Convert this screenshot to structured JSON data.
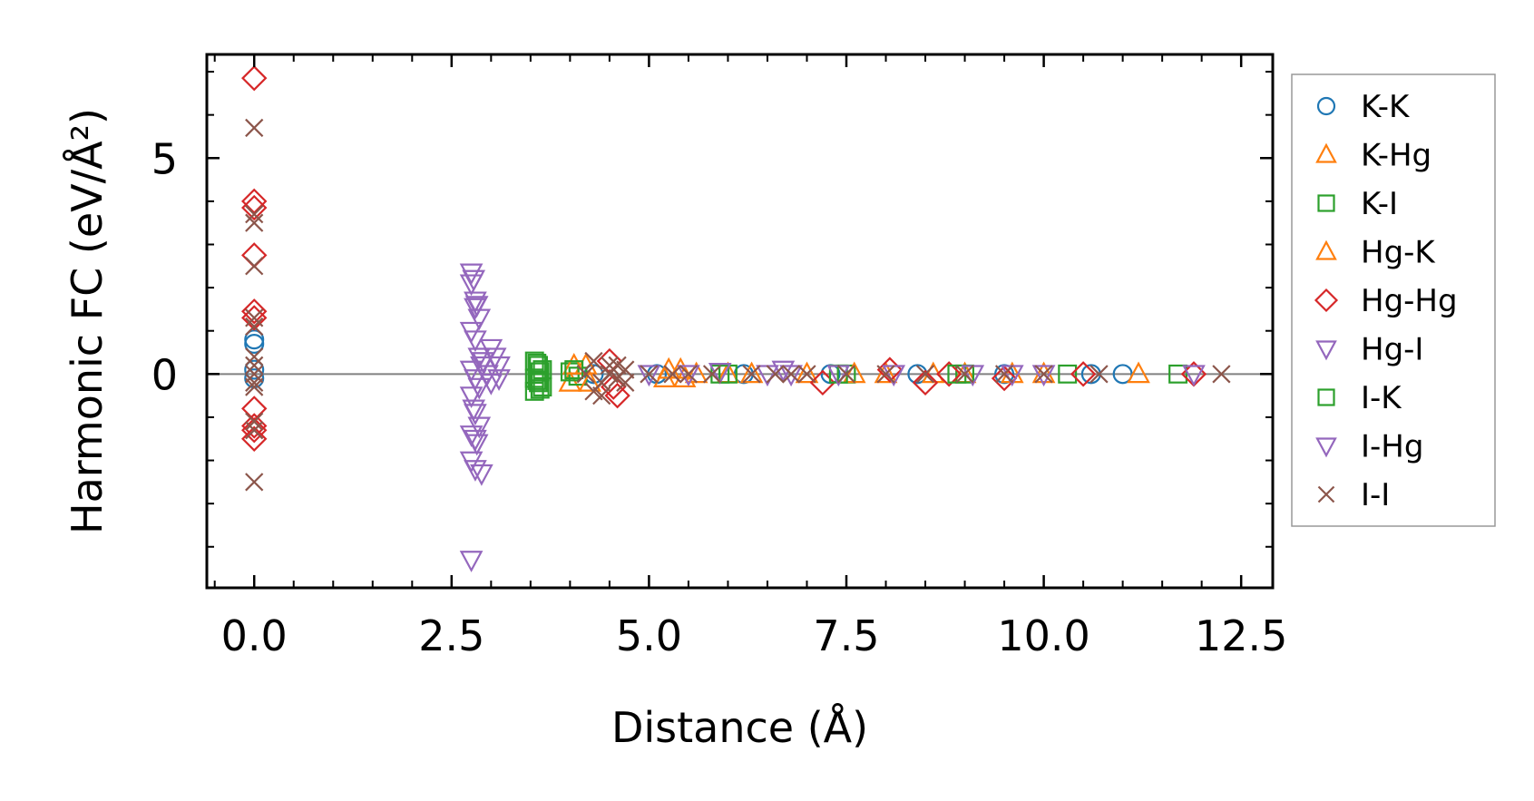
{
  "chart_data": {
    "type": "scatter",
    "title": "",
    "xlabel": "Distance (Å)",
    "ylabel": "Harmonic FC (eV/Å²)",
    "xlim": [
      -0.6,
      12.9
    ],
    "ylim": [
      -4.95,
      7.4
    ],
    "xticks": [
      0.0,
      2.5,
      5.0,
      7.5,
      10.0,
      12.5
    ],
    "xtick_labels": [
      "0.0",
      "2.5",
      "5.0",
      "7.5",
      "10.0",
      "12.5"
    ],
    "yticks": [
      0,
      5
    ],
    "ytick_labels": [
      "0",
      "5"
    ],
    "reference_line_y": 0,
    "legend_position": "right",
    "series": [
      {
        "name": "K-K",
        "marker": "circle",
        "color": "#1f77b4",
        "x": [
          0,
          0,
          0,
          0,
          4.3,
          5.1,
          6.2,
          7.3,
          8.4,
          9.5,
          10.6,
          11.0
        ],
        "y": [
          0.8,
          0.7,
          0.1,
          -0.1,
          0.0,
          0.0,
          0.0,
          0.0,
          0.0,
          0.0,
          0.0,
          0.0
        ]
      },
      {
        "name": "K-Hg",
        "marker": "triangle-up",
        "color": "#ff7f0e",
        "x": [
          4.0,
          4.2,
          5.2,
          5.4,
          5.6,
          6.0,
          7.0,
          8.0,
          9.0,
          10.0,
          11.2
        ],
        "y": [
          -0.2,
          0.2,
          -0.1,
          0.1,
          0.0,
          0.0,
          0.0,
          0.0,
          0.0,
          0.0,
          0.0
        ]
      },
      {
        "name": "K-I",
        "marker": "square",
        "color": "#2ca02c",
        "x": [
          3.55,
          3.6,
          3.65,
          3.55,
          3.6,
          3.65,
          3.55,
          4.0,
          4.1,
          6.0,
          7.5,
          9.0,
          10.3,
          11.7
        ],
        "y": [
          0.3,
          0.2,
          0.1,
          -0.1,
          -0.2,
          -0.3,
          -0.4,
          0.05,
          -0.05,
          0.0,
          0.0,
          0.0,
          0.0,
          0.0
        ]
      },
      {
        "name": "Hg-K",
        "marker": "triangle-up",
        "color": "#ff7f0e",
        "x": [
          4.05,
          4.25,
          5.25,
          5.45,
          6.3,
          7.6,
          8.6,
          9.6
        ],
        "y": [
          0.2,
          -0.2,
          0.1,
          -0.1,
          0.0,
          0.0,
          0.0,
          0.0
        ]
      },
      {
        "name": "Hg-Hg",
        "marker": "diamond",
        "color": "#d62728",
        "x": [
          0,
          0,
          0,
          0,
          0,
          0,
          0,
          0,
          0,
          0,
          4.5,
          4.55,
          4.6,
          7.2,
          8.05,
          8.5,
          8.8,
          9.5,
          10.5,
          11.9
        ],
        "y": [
          6.85,
          4.0,
          3.85,
          2.75,
          1.45,
          1.3,
          -0.8,
          -1.2,
          -1.3,
          -1.5,
          0.3,
          -0.3,
          -0.5,
          -0.2,
          0.1,
          -0.2,
          0.0,
          -0.1,
          0.0,
          0.0
        ]
      },
      {
        "name": "Hg-I",
        "marker": "triangle-down",
        "color": "#9467bd",
        "x": [
          2.75,
          2.75,
          2.8,
          2.8,
          2.85,
          2.75,
          2.8,
          2.85,
          2.9,
          2.75,
          2.8,
          2.85,
          2.75,
          2.8,
          2.85,
          2.75,
          2.8,
          2.75,
          2.8,
          2.75,
          3.0,
          3.05,
          3.1,
          3.0,
          3.1
        ],
        "y": [
          2.35,
          2.1,
          1.7,
          1.55,
          1.3,
          1.0,
          0.8,
          0.4,
          0.3,
          0.1,
          -0.1,
          -0.3,
          -0.5,
          -0.9,
          -1.2,
          -1.4,
          -1.5,
          -2.0,
          -2.2,
          -4.3,
          0.6,
          0.4,
          0.2,
          -0.2,
          -0.1
        ]
      },
      {
        "name": "I-K",
        "marker": "square",
        "color": "#2ca02c",
        "x": [
          3.58,
          3.62,
          3.58,
          3.62,
          4.05,
          5.9,
          7.4,
          8.9
        ],
        "y": [
          0.25,
          0.05,
          -0.15,
          -0.35,
          0.1,
          0.0,
          0.0,
          0.0
        ]
      },
      {
        "name": "I-Hg",
        "marker": "triangle-down",
        "color": "#9467bd",
        "x": [
          2.78,
          2.82,
          2.88,
          2.78,
          2.82,
          2.88,
          2.95,
          5.0,
          5.5,
          5.9,
          6.5,
          6.7,
          6.8,
          7.4,
          8.1,
          9.1,
          9.6,
          10.0,
          11.9
        ],
        "y": [
          2.2,
          1.6,
          0.2,
          -0.8,
          -1.6,
          -2.3,
          0.0,
          0.0,
          0.0,
          0.05,
          0.0,
          0.1,
          0.0,
          0.0,
          0.0,
          0.0,
          0.0,
          0.0,
          0.0
        ]
      },
      {
        "name": "I-I",
        "marker": "x",
        "color": "#8c564b",
        "x": [
          0,
          0,
          0,
          0,
          0,
          0,
          0,
          0,
          0,
          0,
          0,
          0,
          0,
          0,
          4.2,
          4.3,
          4.4,
          4.5,
          4.6,
          4.7,
          4.3,
          4.5,
          4.7,
          4.4,
          4.6,
          5.0,
          5.3,
          5.5,
          5.8,
          6.3,
          6.6,
          6.8,
          7.0,
          7.5,
          8.0,
          8.5,
          9.0,
          9.5,
          10.0,
          10.7,
          12.25
        ],
        "y": [
          5.7,
          3.7,
          3.5,
          2.5,
          1.3,
          1.1,
          0.4,
          0.2,
          0.0,
          -0.2,
          -0.3,
          -1.1,
          -1.3,
          -2.5,
          0.0,
          0.3,
          -0.2,
          0.2,
          -0.1,
          0.1,
          -0.4,
          0.0,
          -0.2,
          -0.5,
          0.2,
          0.0,
          0.0,
          0.0,
          0.0,
          0.0,
          0.0,
          0.0,
          0.0,
          0.0,
          0.0,
          0.0,
          0.0,
          0.0,
          0.0,
          0.0,
          0.0
        ]
      }
    ]
  }
}
